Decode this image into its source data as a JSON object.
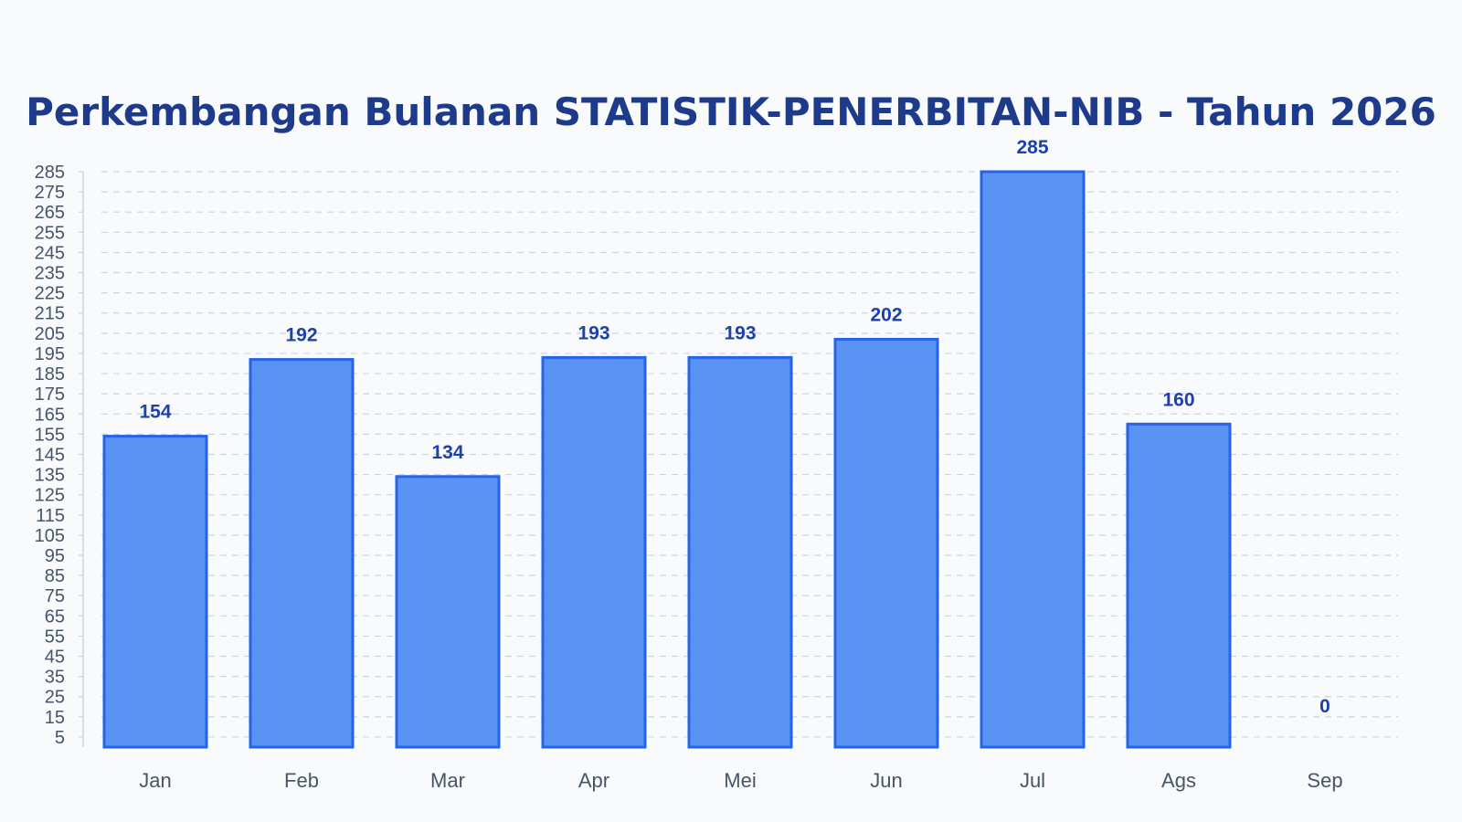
{
  "colors": {
    "background": "#f8fafc",
    "title": "#1e3a8a",
    "bar_fill": "#5b93f4",
    "bar_stroke": "#2563eb",
    "data_label": "#1e40af",
    "grid": "#cbd5e1",
    "tick": "#475569"
  },
  "chart_data": {
    "type": "bar",
    "title": "Perkembangan Bulanan STATISTIK-PENERBITAN-NIB - Tahun 2026",
    "xlabel": "",
    "ylabel": "",
    "categories": [
      "Jan",
      "Feb",
      "Mar",
      "Apr",
      "Mei",
      "Jun",
      "Jul",
      "Ags",
      "Sep"
    ],
    "values": [
      154,
      192,
      134,
      193,
      193,
      202,
      285,
      160,
      0
    ],
    "data_labels": [
      "154",
      "192",
      "134",
      "193",
      "193",
      "202",
      "285",
      "160",
      "0"
    ],
    "yticks": [
      "5",
      "15",
      "25",
      "35",
      "45",
      "55",
      "65",
      "75",
      "85",
      "95",
      "105",
      "115",
      "125",
      "135",
      "145",
      "155",
      "165",
      "175",
      "185",
      "195",
      "205",
      "215",
      "225",
      "235",
      "245",
      "255",
      "265",
      "275",
      "285"
    ],
    "ylim": [
      0,
      285
    ],
    "grid": true,
    "legend": "none"
  }
}
